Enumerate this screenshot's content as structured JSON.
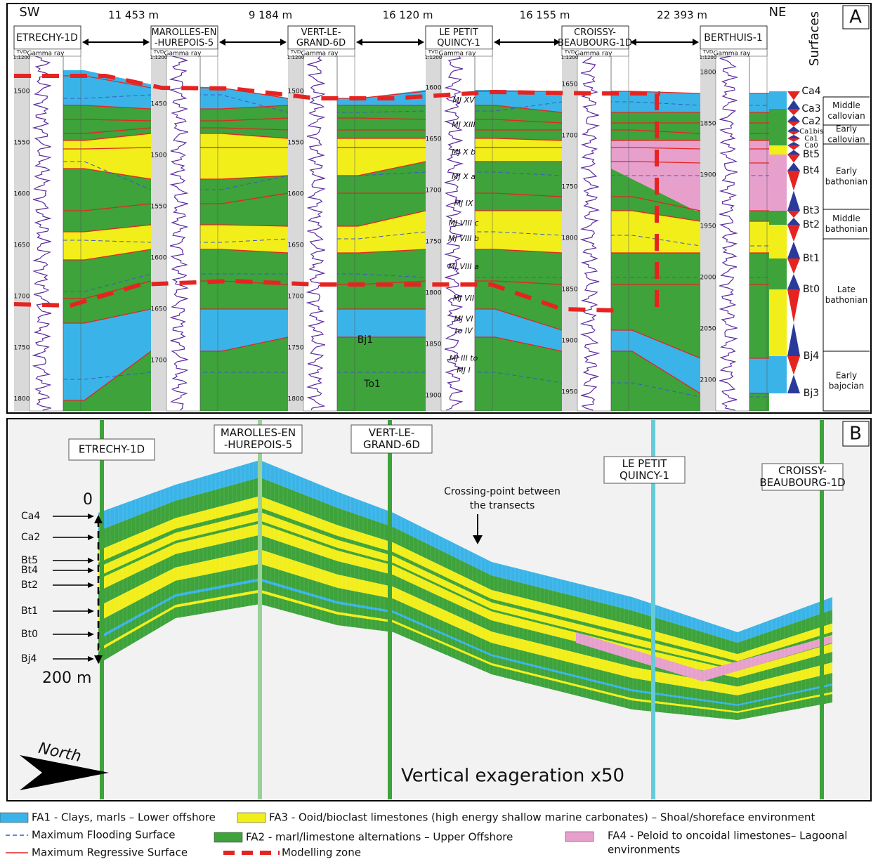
{
  "panel_a": {
    "label": "A",
    "sw": "SW",
    "ne": "NE",
    "surfaces_title": "Surfaces",
    "distances": [
      "11 453 m",
      "9 184 m",
      "16 120 m",
      "16 155 m",
      "22 393 m"
    ],
    "log_header": {
      "tvd": "TVD",
      "scale": "1:1200",
      "gamma": "Gamma ray"
    },
    "wells": [
      {
        "name": [
          "ETRECHY-1D"
        ],
        "depths": [
          1500,
          1550,
          1600,
          1650,
          1700,
          1750,
          1800
        ]
      },
      {
        "name": [
          "MAROLLES-EN",
          "-HUREPOIS-5"
        ],
        "depths": [
          1450,
          1500,
          1550,
          1600,
          1650,
          1700
        ]
      },
      {
        "name": [
          "VERT-LE-",
          "GRAND-6D"
        ],
        "depths": [
          1500,
          1550,
          1600,
          1650,
          1700,
          1750,
          1800
        ]
      },
      {
        "name": [
          "LE PETIT",
          "QUINCY-1"
        ],
        "depths": [
          1600,
          1650,
          1700,
          1750,
          1800,
          1850,
          1900
        ]
      },
      {
        "name": [
          "CROISSY-",
          "BEAUBOURG-1D"
        ],
        "depths": [
          1650,
          1700,
          1750,
          1800,
          1850,
          1900,
          1950
        ]
      },
      {
        "name": [
          "BERTHUIS-1"
        ],
        "depths": [
          1800,
          1850,
          1900,
          1950,
          2000,
          2050,
          2100
        ]
      }
    ],
    "surfaces": [
      "Ca4",
      "Ca3",
      "Ca2",
      "Ca1bis",
      "Ca1",
      "Ca0",
      "Bt5",
      "Bt4",
      "Bt3",
      "Bt2",
      "Bt1",
      "Bt0",
      "Bj4",
      "Bj3"
    ],
    "stages": [
      [
        "Middle",
        "callovian"
      ],
      [
        "Early",
        "callovian"
      ],
      [
        "Early",
        "bathonian"
      ],
      [
        "Middle",
        "bathonian"
      ],
      [
        "Late",
        "bathonian"
      ],
      [
        "Early",
        "bajocian"
      ]
    ],
    "units": [
      [
        "MJ XV"
      ],
      [
        "MJ XIII"
      ],
      [
        "MJ X b"
      ],
      [
        "MJ X a"
      ],
      [
        "MJ IX"
      ],
      [
        "MJ VIII c"
      ],
      [
        "MJ VIII b"
      ],
      [
        "MJ VIII a"
      ],
      [
        "MJ VII"
      ],
      [
        "MJ VI",
        "to IV"
      ],
      [
        "MJ III to",
        "MJ I"
      ]
    ],
    "markers": [
      "Bj1",
      "To1"
    ]
  },
  "panel_b": {
    "label": "B",
    "wells": [
      [
        "ETRECHY-1D"
      ],
      [
        "MAROLLES-EN",
        "-HUREPOIS-5"
      ],
      [
        "VERT-LE-",
        "GRAND-6D"
      ],
      [
        "LE PETIT",
        "QUINCY-1"
      ],
      [
        "CROISSY-",
        "BEAUBOURG-1D"
      ]
    ],
    "crossing": [
      "Crossing-point between",
      "the transects"
    ],
    "top": "0",
    "bottom": "200 m",
    "surfaces": [
      "Ca4",
      "Ca2",
      "Bt5",
      "Bt4",
      "Bt2",
      "Bt1",
      "Bt0",
      "Bj4"
    ],
    "north": "North",
    "exaggeration": "Vertical exageration x50"
  },
  "legend": [
    "FA1 - Clays, marls – Lower offshore",
    "FA3 - Ooid/bioclast limestones (high energy shallow marine carbonates) – Shoal/shoreface environment",
    "Maximum Flooding Surface",
    "FA2 - marl/limestone alternations – Upper Offshore",
    "FA4 - Peloid to oncoidal limestones– Lagoonal",
    "environments",
    "Maximum Regressive Surface",
    "Modelling zone"
  ]
}
